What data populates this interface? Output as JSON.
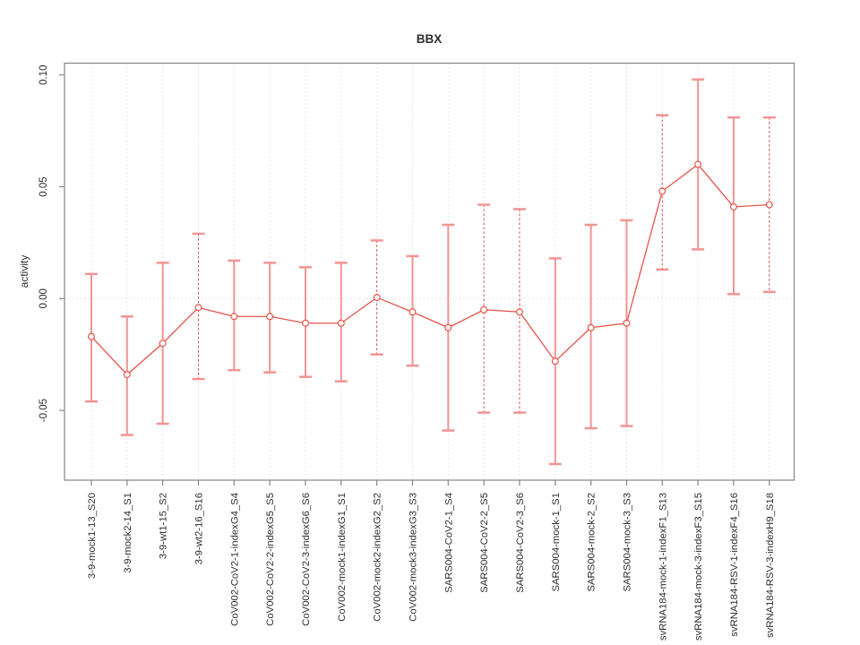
{
  "chart_data": {
    "type": "scatter",
    "subtype": "points-with-error-bars-connected-by-line",
    "title": "BBX",
    "xlabel": "",
    "ylabel": "activity",
    "legend": "none",
    "grid": {
      "vertical_dotted_per_category": true,
      "horizontal_dotted_at_zero": true
    },
    "ylim": [
      -0.081,
      0.105
    ],
    "yticks": [
      {
        "value": 0.1,
        "label": "0.10"
      },
      {
        "value": 0.05,
        "label": "0.05"
      },
      {
        "value": 0.0,
        "label": "0.00"
      },
      {
        "value": -0.05,
        "label": "-0.05"
      }
    ],
    "xtick_rotation_degrees": 90,
    "categories": [
      "3-9-mock1-13_S20",
      "3-9-mock2-14_S1",
      "3-9-wt1-15_S2",
      "3-9-wt2-16_S16",
      "CoV002-CoV2-1-indexG4_S4",
      "CoV002-CoV2-2-indexG5_S5",
      "CoV002-CoV2-3-indexG6_S6",
      "CoV002-mock1-indexG1_S1",
      "CoV002-mock2-indexG2_S2",
      "CoV002-mock3-indexG3_S3",
      "SARS004-CoV2-1_S4",
      "SARS004-CoV2-2_S5",
      "SARS004-CoV2-3_S6",
      "SARS004-mock-1_S1",
      "SARS004-mock-2_S2",
      "SARS004-mock-3_S3",
      "svRNA184-mock-1-indexF1_S13",
      "svRNA184-mock-3-indexF3_S15",
      "svRNA184-RSV-1-indexF4_S16",
      "svRNA184-RSV-3-indexH9_S18"
    ],
    "series": [
      {
        "name": "activity",
        "values": [
          -0.017,
          -0.034,
          -0.02,
          -0.004,
          -0.008,
          -0.008,
          -0.011,
          -0.011,
          0.0005,
          -0.006,
          -0.013,
          -0.005,
          -0.006,
          -0.028,
          -0.013,
          -0.011,
          0.048,
          0.06,
          0.041,
          0.042
        ],
        "ci_low": [
          -0.046,
          -0.061,
          -0.056,
          -0.036,
          -0.032,
          -0.033,
          -0.035,
          -0.037,
          -0.025,
          -0.03,
          -0.059,
          -0.051,
          -0.051,
          -0.074,
          -0.058,
          -0.057,
          0.013,
          0.022,
          0.002,
          0.003
        ],
        "ci_high": [
          0.011,
          -0.008,
          0.016,
          0.029,
          0.017,
          0.016,
          0.014,
          0.016,
          0.026,
          0.019,
          0.033,
          0.042,
          0.04,
          0.018,
          0.033,
          0.035,
          0.082,
          0.098,
          0.081,
          0.081
        ]
      }
    ],
    "dashed_bar_indices": [
      3,
      8,
      11,
      12,
      16,
      19
    ],
    "colors": {
      "point": "#e8534a",
      "line": "#e8534a",
      "bar": "#f29494",
      "bar_dashed": "#e04848",
      "grid": "#dcdcdc",
      "axis": "#858585",
      "text": "#2e2e2e"
    }
  }
}
